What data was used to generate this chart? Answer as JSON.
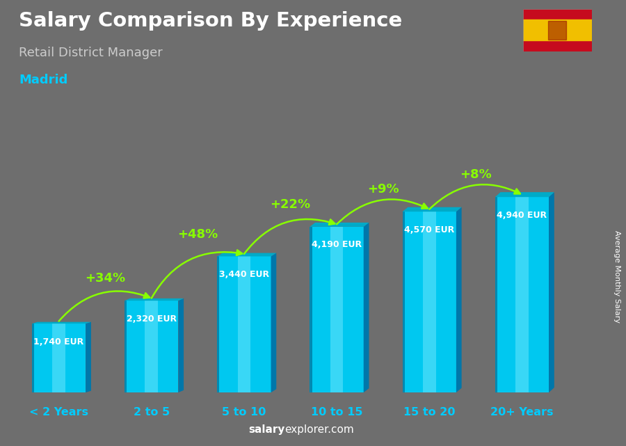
{
  "title": "Salary Comparison By Experience",
  "subtitle": "Retail District Manager",
  "city": "Madrid",
  "ylabel": "Average Monthly Salary",
  "categories": [
    "< 2 Years",
    "2 to 5",
    "5 to 10",
    "10 to 15",
    "15 to 20",
    "20+ Years"
  ],
  "values": [
    1740,
    2320,
    3440,
    4190,
    4570,
    4940
  ],
  "pct_changes": [
    "+34%",
    "+48%",
    "+22%",
    "+9%",
    "+8%"
  ],
  "value_labels": [
    "1,740 EUR",
    "2,320 EUR",
    "3,440 EUR",
    "4,190 EUR",
    "4,570 EUR",
    "4,940 EUR"
  ],
  "bar_front_color": "#00c8f0",
  "bar_highlight_color": "#80eaff",
  "bar_side_color": "#0077aa",
  "bar_top_color": "#00aac8",
  "bar_left_edge_color": "#005f88",
  "background_color": "#6e6e6e",
  "title_color": "#ffffff",
  "subtitle_color": "#cccccc",
  "city_color": "#00ccff",
  "label_color": "#ffffff",
  "pct_color": "#88ff00",
  "tick_color": "#00ccff",
  "watermark_salary": "salary",
  "watermark_explorer": "explorer",
  "watermark_domain": ".com",
  "watermark_color_normal": "#ffffff",
  "watermark_color_bold": "#ffffff",
  "ylim_max": 6200,
  "bar_width": 0.58,
  "side_depth_ratio": 0.1,
  "figsize": [
    9.0,
    6.41
  ],
  "dpi": 100
}
